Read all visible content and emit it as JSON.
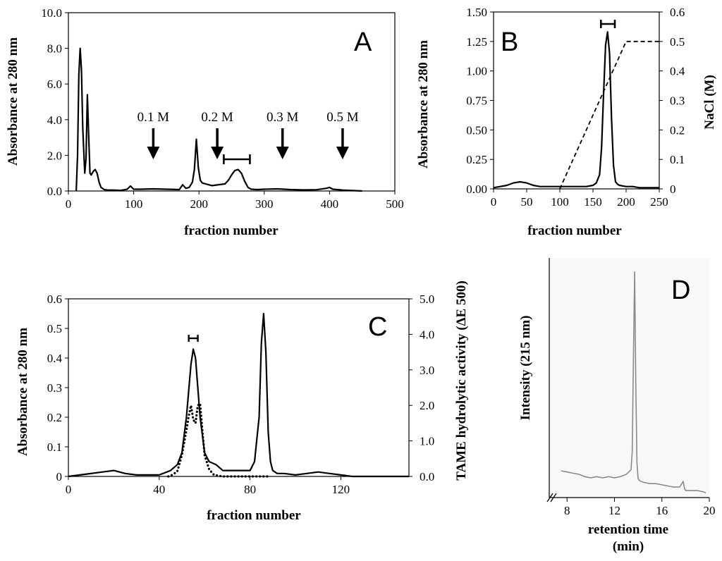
{
  "colors": {
    "ink": "#000000",
    "hplc_trace": "#8a8a8a"
  },
  "chart_data": [
    {
      "panel": "A",
      "type": "line",
      "xlabel": "fraction number",
      "ylabel": "Absorbance at 280 nm",
      "xlim": [
        0,
        500
      ],
      "ylim": [
        0,
        10
      ],
      "xticks": [
        "0",
        "100",
        "200",
        "300",
        "400",
        "500"
      ],
      "yticks": [
        "0.0",
        "2.0",
        "4.0",
        "6.0",
        "8.0",
        "10.0"
      ],
      "annotations": [
        "0.1 M",
        "0.2 M",
        "0.3 M",
        "0.5 M"
      ],
      "annotation_x": [
        130,
        228,
        328,
        420
      ],
      "pool_bar": [
        238,
        278
      ],
      "series": [
        {
          "name": "A280",
          "x": [
            12,
            14,
            16,
            18,
            20,
            22,
            25,
            27,
            29,
            31,
            33,
            35,
            38,
            41,
            44,
            47,
            50,
            55,
            60,
            70,
            80,
            90,
            95,
            100,
            110,
            130,
            150,
            170,
            175,
            180,
            185,
            190,
            193,
            196,
            199,
            202,
            205,
            210,
            220,
            230,
            240,
            245,
            250,
            255,
            260,
            265,
            270,
            275,
            280,
            290,
            300,
            320,
            340,
            360,
            380,
            395,
            400,
            405,
            420,
            450
          ],
          "y": [
            0.0,
            2.0,
            6.5,
            8.0,
            6.8,
            3.5,
            1.0,
            1.8,
            5.4,
            3.2,
            1.0,
            0.9,
            1.1,
            1.2,
            1.0,
            0.5,
            0.2,
            0.08,
            0.05,
            0.05,
            0.03,
            0.1,
            0.28,
            0.1,
            0.1,
            0.12,
            0.1,
            0.08,
            0.35,
            0.15,
            0.2,
            0.5,
            1.2,
            2.9,
            1.3,
            0.6,
            0.45,
            0.4,
            0.3,
            0.35,
            0.4,
            0.6,
            0.9,
            1.15,
            1.2,
            1.0,
            0.55,
            0.2,
            0.1,
            0.08,
            0.1,
            0.12,
            0.08,
            0.06,
            0.07,
            0.15,
            0.2,
            0.1,
            0.05,
            0.0
          ]
        }
      ]
    },
    {
      "panel": "B",
      "type": "line",
      "xlabel": "fraction number",
      "ylabel": "Absorbance at 280 nm",
      "y2label": "NaCl (M)",
      "xlim": [
        0,
        250
      ],
      "ylim": [
        0,
        1.5
      ],
      "y2lim": [
        0,
        0.6
      ],
      "xticks": [
        "0",
        "50",
        "100",
        "150",
        "200",
        "250"
      ],
      "yticks": [
        "0.00",
        "0.25",
        "0.50",
        "0.75",
        "1.00",
        "1.25",
        "1.50"
      ],
      "y2ticks": [
        "0",
        "0.1",
        "0.2",
        "0.3",
        "0.4",
        "0.5",
        "0.6"
      ],
      "pool_bar": [
        162,
        183
      ],
      "series": [
        {
          "name": "A280",
          "x": [
            0,
            10,
            20,
            30,
            40,
            50,
            60,
            70,
            80,
            90,
            100,
            110,
            120,
            130,
            140,
            150,
            155,
            160,
            163,
            166,
            169,
            172,
            175,
            178,
            181,
            184,
            187,
            190,
            200,
            210,
            220,
            230,
            240,
            250
          ],
          "y": [
            0.01,
            0.02,
            0.03,
            0.05,
            0.06,
            0.05,
            0.03,
            0.02,
            0.02,
            0.02,
            0.02,
            0.02,
            0.02,
            0.02,
            0.02,
            0.03,
            0.05,
            0.12,
            0.35,
            0.8,
            1.22,
            1.33,
            1.15,
            0.6,
            0.2,
            0.06,
            0.04,
            0.03,
            0.02,
            0.02,
            0.01,
            0.01,
            0.01,
            0.01
          ]
        },
        {
          "name": "NaCl",
          "axis": "right",
          "x": [
            100,
            200,
            250
          ],
          "y": [
            0.0,
            0.5,
            0.5
          ]
        }
      ]
    },
    {
      "panel": "C",
      "type": "line",
      "xlabel": "fraction number",
      "ylabel": "Absorbance at 280 nm",
      "y2label": "TAME hydrolytic activity (ΔE 500)",
      "xlim": [
        0,
        150
      ],
      "ylim": [
        0,
        0.6
      ],
      "y2lim": [
        0,
        5.0
      ],
      "xticks": [
        "0",
        "40",
        "80",
        "120"
      ],
      "xtick_values": [
        0,
        40,
        80,
        120
      ],
      "yticks": [
        "0",
        "0.1",
        "0.2",
        "0.3",
        "0.4",
        "0.5",
        "0.6"
      ],
      "y2ticks": [
        "0.0",
        "1.0",
        "2.0",
        "3.0",
        "4.0",
        "5.0"
      ],
      "pool_bar": [
        53,
        57
      ],
      "series": [
        {
          "name": "A280",
          "x": [
            0,
            5,
            10,
            15,
            20,
            25,
            30,
            35,
            40,
            45,
            48,
            50,
            52,
            54,
            55,
            56,
            58,
            60,
            62,
            65,
            68,
            70,
            75,
            80,
            82,
            84,
            85,
            86,
            87,
            88,
            89,
            90,
            92,
            95,
            100,
            105,
            110,
            115,
            120,
            125,
            130,
            140,
            150
          ],
          "y": [
            0.0,
            0.005,
            0.01,
            0.015,
            0.02,
            0.01,
            0.005,
            0.005,
            0.005,
            0.02,
            0.04,
            0.08,
            0.2,
            0.38,
            0.43,
            0.4,
            0.2,
            0.08,
            0.05,
            0.04,
            0.02,
            0.02,
            0.02,
            0.02,
            0.05,
            0.2,
            0.45,
            0.55,
            0.42,
            0.15,
            0.05,
            0.02,
            0.01,
            0.01,
            0.005,
            0.01,
            0.015,
            0.01,
            0.005,
            0.0,
            0.0,
            0.0,
            0.0
          ]
        },
        {
          "name": "TAME activity",
          "axis": "right",
          "x": [
            44,
            46,
            48,
            50,
            52,
            53,
            54,
            55,
            56,
            57,
            58,
            59,
            60,
            62,
            64,
            66,
            68,
            70,
            75,
            80,
            85,
            88
          ],
          "y": [
            0.0,
            0.05,
            0.15,
            0.6,
            1.3,
            1.7,
            2.0,
            1.6,
            1.5,
            2.0,
            2.05,
            1.3,
            0.6,
            0.2,
            0.05,
            0.02,
            0.0,
            0.0,
            0.0,
            0.0,
            0.0,
            0.0
          ]
        }
      ]
    },
    {
      "panel": "D",
      "type": "line",
      "xlabel": "retention time",
      "xlabel_unit": "(min)",
      "ylabel": "Intensity (215 nm)",
      "xlim": [
        6.5,
        20
      ],
      "xticks": [
        "8",
        "12",
        "16",
        "20"
      ],
      "xtick_values": [
        8,
        12,
        16,
        20
      ],
      "ylim": [
        0,
        1
      ],
      "series": [
        {
          "name": "HPLC trace",
          "x": [
            7.5,
            8.0,
            8.5,
            9.0,
            9.5,
            10.0,
            10.5,
            11.0,
            11.5,
            12.0,
            12.5,
            13.0,
            13.2,
            13.4,
            13.5,
            13.6,
            13.7,
            13.8,
            13.9,
            14.0,
            14.2,
            14.5,
            15.0,
            15.5,
            16.0,
            16.5,
            17.0,
            17.5,
            17.8,
            17.9,
            18.0,
            18.5,
            19.0,
            19.5,
            19.7
          ],
          "y": [
            0.115,
            0.11,
            0.105,
            0.1,
            0.09,
            0.085,
            0.09,
            0.085,
            0.09,
            0.085,
            0.09,
            0.1,
            0.11,
            0.12,
            0.2,
            0.6,
            0.97,
            0.5,
            0.15,
            0.08,
            0.07,
            0.065,
            0.06,
            0.06,
            0.055,
            0.05,
            0.045,
            0.045,
            0.07,
            0.04,
            0.03,
            0.03,
            0.03,
            0.025,
            0.02
          ]
        }
      ]
    }
  ]
}
